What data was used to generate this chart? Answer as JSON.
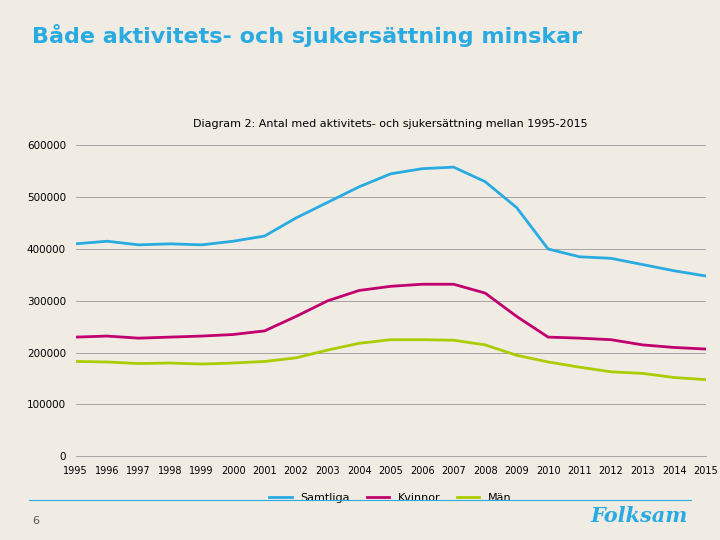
{
  "title_main": "Både aktivitets- och sjukersättning minskar",
  "title_main_color": "#29abe2",
  "chart_title": "Diagram 2: Antal med aktivitets- och sjukersättning mellan 1995-2015",
  "years": [
    1995,
    1996,
    1997,
    1998,
    1999,
    2000,
    2001,
    2002,
    2003,
    2004,
    2005,
    2006,
    2007,
    2008,
    2009,
    2010,
    2011,
    2012,
    2013,
    2014,
    2015
  ],
  "samtliga": [
    410000,
    415000,
    408000,
    410000,
    408000,
    415000,
    425000,
    460000,
    490000,
    520000,
    545000,
    555000,
    558000,
    530000,
    480000,
    400000,
    385000,
    382000,
    370000,
    358000,
    348000
  ],
  "kvinnor": [
    230000,
    232000,
    228000,
    230000,
    232000,
    235000,
    242000,
    270000,
    300000,
    320000,
    328000,
    332000,
    332000,
    315000,
    270000,
    230000,
    228000,
    225000,
    215000,
    210000,
    207000
  ],
  "man": [
    183000,
    182000,
    179000,
    180000,
    178000,
    180000,
    183000,
    190000,
    205000,
    218000,
    225000,
    225000,
    224000,
    215000,
    195000,
    182000,
    172000,
    163000,
    160000,
    152000,
    148000
  ],
  "samtliga_color": "#29abe2",
  "kvinnor_color": "#c0006e",
  "man_color": "#aacc00",
  "bg_color": "#f0ece4",
  "grid_color": "#999999",
  "ylim": [
    0,
    620000
  ],
  "yticks": [
    0,
    100000,
    200000,
    300000,
    400000,
    500000,
    600000
  ],
  "ytick_labels": [
    "0",
    "100000",
    "200000",
    "300000",
    "400000",
    "500000",
    "600000"
  ],
  "legend_labels": [
    "Samtliga",
    "Kvinnor",
    "Män"
  ],
  "page_number": "6",
  "folksam_color": "#29abe2",
  "line_color": "#29abe2"
}
